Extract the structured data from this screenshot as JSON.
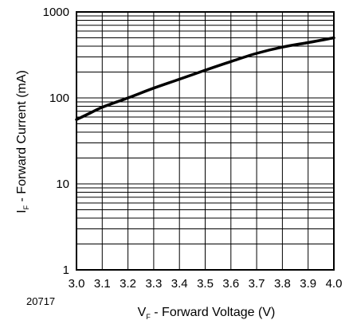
{
  "chart_data": {
    "type": "line",
    "figure_id": "20717",
    "xlabel_main": "V",
    "xlabel_sub": "F",
    "xlabel_rest": " - Forward Voltage (V)",
    "ylabel_main": "I",
    "ylabel_sub": "F",
    "ylabel_rest": " - Forward Current (mA)",
    "xlim": [
      3.0,
      4.0
    ],
    "ylim": [
      1,
      1000
    ],
    "yscale": "log",
    "grid": true,
    "x_ticks": [
      {
        "value": 3.0,
        "label": "3.0"
      },
      {
        "value": 3.1,
        "label": "3.1"
      },
      {
        "value": 3.2,
        "label": "3.2"
      },
      {
        "value": 3.3,
        "label": "3.3"
      },
      {
        "value": 3.4,
        "label": "3.4"
      },
      {
        "value": 3.5,
        "label": "3.5"
      },
      {
        "value": 3.6,
        "label": "3.6"
      },
      {
        "value": 3.7,
        "label": "3.7"
      },
      {
        "value": 3.8,
        "label": "3.8"
      },
      {
        "value": 3.9,
        "label": "3.9"
      },
      {
        "value": 4.0,
        "label": "4.0"
      }
    ],
    "y_ticks": [
      {
        "value": 1,
        "label": "1"
      },
      {
        "value": 10,
        "label": "10"
      },
      {
        "value": 100,
        "label": "100"
      },
      {
        "value": 1000,
        "label": "1000"
      }
    ],
    "series": [
      {
        "color": "#000000",
        "x": [
          3.0,
          3.05,
          3.1,
          3.2,
          3.3,
          3.4,
          3.5,
          3.6,
          3.7,
          3.8,
          3.9,
          4.0
        ],
        "y": [
          56,
          66,
          78,
          100,
          130,
          165,
          210,
          265,
          330,
          390,
          440,
          500
        ]
      }
    ]
  }
}
